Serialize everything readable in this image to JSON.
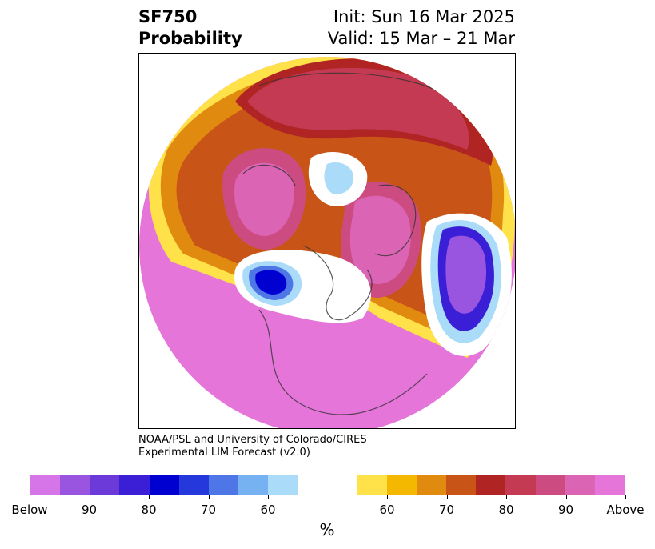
{
  "title": {
    "left_line1": "SF750",
    "left_line2": "Probability",
    "right_line1": "Init: Sun 16 Mar 2025",
    "right_line2": "Valid: 15 Mar – 21 Mar"
  },
  "credit": {
    "line1": "NOAA/PSL and University of Colorado/CIRES",
    "line2": "Experimental LIM Forecast (v2.0)"
  },
  "colorbar": {
    "colors": [
      "#d675e8",
      "#9a55e0",
      "#6b3ad9",
      "#3a1fd6",
      "#0000d0",
      "#2438dc",
      "#4e76e6",
      "#76b2f2",
      "#aadcfa",
      "#ffffff",
      "#ffe14a",
      "#f5b800",
      "#e08a10",
      "#c85418",
      "#b02424",
      "#c43a52",
      "#cc4c82",
      "#dc64b4",
      "#e675da"
    ],
    "tick_labels": [
      "Below",
      "90",
      "80",
      "70",
      "60",
      "60",
      "70",
      "80",
      "90",
      "Above"
    ],
    "unit": "%"
  }
}
